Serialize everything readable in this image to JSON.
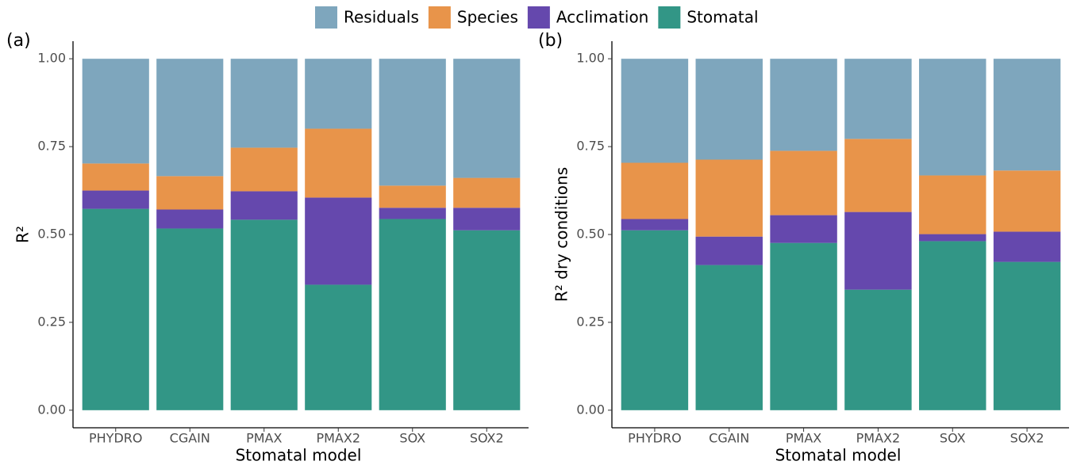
{
  "chart_data": [
    {
      "type": "stacked_bar",
      "panel_label": "(a)",
      "x_label": "Stomatal model",
      "y_label": "R²",
      "categories": [
        "PHYDRO",
        "CGAIN",
        "PMAX",
        "PMAX2",
        "SOX",
        "SOX2"
      ],
      "series": [
        {
          "name": "Residuals",
          "color": "#7ea6bd",
          "values": [
            0.298,
            0.334,
            0.253,
            0.199,
            0.361,
            0.339
          ]
        },
        {
          "name": "Species",
          "color": "#e8944a",
          "values": [
            0.077,
            0.095,
            0.124,
            0.196,
            0.063,
            0.085
          ]
        },
        {
          "name": "Acclimation",
          "color": "#6548ad",
          "values": [
            0.052,
            0.054,
            0.081,
            0.248,
            0.032,
            0.064
          ]
        },
        {
          "name": "Stomatal",
          "color": "#329686",
          "values": [
            0.573,
            0.517,
            0.542,
            0.357,
            0.544,
            0.512
          ]
        }
      ],
      "ylim": [
        -0.05,
        1.05
      ],
      "yticks": [
        {
          "value": 0,
          "label": "0.00"
        },
        0.25,
        {
          "value": 0.5,
          "label": "0.50"
        },
        0.75,
        {
          "value": 1,
          "label": "1.00"
        }
      ]
    },
    {
      "type": "stacked_bar",
      "panel_label": "(b)",
      "x_label": "Stomatal model",
      "y_label": "R² dry conditions",
      "categories": [
        "PHYDRO",
        "CGAIN",
        "PMAX",
        "PMAX2",
        "SOX",
        "SOX2"
      ],
      "series": [
        {
          "name": "Residuals",
          "color": "#7ea6bd",
          "values": [
            0.296,
            0.287,
            0.262,
            0.228,
            0.332,
            0.318
          ]
        },
        {
          "name": "Species",
          "color": "#e8944a",
          "values": [
            0.16,
            0.219,
            0.183,
            0.208,
            0.167,
            0.174
          ]
        },
        {
          "name": "Acclimation",
          "color": "#6548ad",
          "values": [
            0.032,
            0.081,
            0.079,
            0.221,
            0.02,
            0.086
          ]
        },
        {
          "name": "Stomatal",
          "color": "#329686",
          "values": [
            0.512,
            0.413,
            0.476,
            0.343,
            0.481,
            0.422
          ]
        }
      ],
      "ylim": [
        -0.05,
        1.05
      ],
      "yticks": [
        {
          "value": 0,
          "label": "0.00"
        },
        0.25,
        {
          "value": 0.5,
          "label": "0.50"
        },
        0.75,
        {
          "value": 1,
          "label": "1.00"
        }
      ]
    }
  ]
}
